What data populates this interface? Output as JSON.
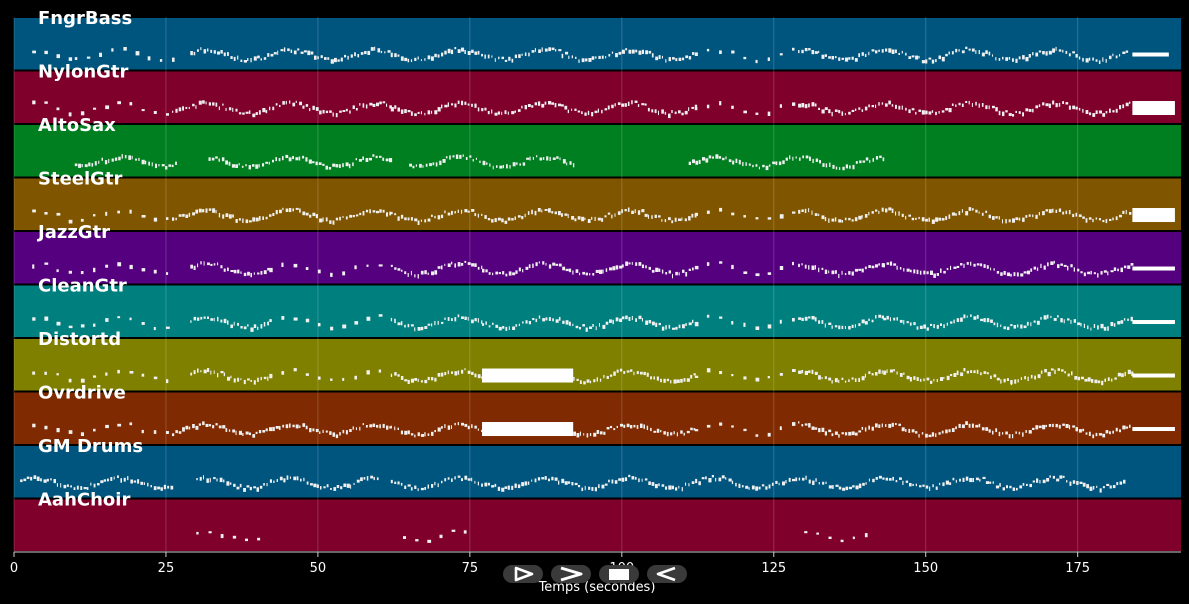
{
  "chart_data": {
    "type": "piano-roll",
    "title": "",
    "xlabel": "Temps (secondes)",
    "ylabel": "",
    "xlim": [
      0,
      192
    ],
    "xticks": [
      0,
      25,
      50,
      75,
      100,
      125,
      150,
      175
    ],
    "grid": true,
    "tracks": [
      {
        "name": "FngrBass",
        "color": "#00557f",
        "segments": [
          [
            3,
            10,
            "sparse"
          ],
          [
            10,
            27,
            "sparse"
          ],
          [
            29,
            62,
            "dense"
          ],
          [
            62,
            78,
            "dense"
          ],
          [
            78,
            100,
            "dense"
          ],
          [
            100,
            112,
            "dense"
          ],
          [
            112,
            129,
            "sparse"
          ],
          [
            129,
            183,
            "dense"
          ],
          [
            184,
            190,
            "sustain"
          ]
        ]
      },
      {
        "name": "NylonGtr",
        "color": "#7f002a",
        "segments": [
          [
            3,
            26,
            "sparse"
          ],
          [
            26,
            62,
            "dense"
          ],
          [
            62,
            90,
            "dense"
          ],
          [
            90,
            112,
            "dense"
          ],
          [
            112,
            129,
            "sparse"
          ],
          [
            129,
            184,
            "dense"
          ],
          [
            184,
            191,
            "block"
          ]
        ]
      },
      {
        "name": "AltoSax",
        "color": "#007f20",
        "segments": [
          [
            10,
            27,
            "dense"
          ],
          [
            32,
            62,
            "dense"
          ],
          [
            65,
            92,
            "dense"
          ],
          [
            111,
            143,
            "dense"
          ]
        ]
      },
      {
        "name": "SteelGtr",
        "color": "#7f5500",
        "segments": [
          [
            3,
            26,
            "sparse"
          ],
          [
            26,
            62,
            "dense"
          ],
          [
            62,
            90,
            "dense"
          ],
          [
            90,
            112,
            "dense"
          ],
          [
            112,
            129,
            "sparse"
          ],
          [
            129,
            184,
            "dense"
          ],
          [
            184,
            191,
            "block"
          ]
        ]
      },
      {
        "name": "JazzGtr",
        "color": "#55007f",
        "segments": [
          [
            3,
            26,
            "sparse"
          ],
          [
            29,
            42,
            "dense"
          ],
          [
            42,
            62,
            "sparse"
          ],
          [
            62,
            77,
            "dense"
          ],
          [
            77,
            100,
            "dense"
          ],
          [
            100,
            112,
            "dense"
          ],
          [
            112,
            129,
            "sparse"
          ],
          [
            129,
            143,
            "dense"
          ],
          [
            143,
            184,
            "dense"
          ],
          [
            184,
            191,
            "sustain"
          ]
        ]
      },
      {
        "name": "CleanGtr",
        "color": "#007f7f",
        "segments": [
          [
            3,
            26,
            "sparse"
          ],
          [
            29,
            42,
            "dense"
          ],
          [
            42,
            62,
            "sparse"
          ],
          [
            62,
            77,
            "dense"
          ],
          [
            77,
            100,
            "dense"
          ],
          [
            100,
            112,
            "dense"
          ],
          [
            112,
            129,
            "sparse"
          ],
          [
            129,
            143,
            "dense"
          ],
          [
            143,
            184,
            "dense"
          ],
          [
            184,
            191,
            "sustain"
          ]
        ]
      },
      {
        "name": "Distortd",
        "color": "#7f7f00",
        "segments": [
          [
            3,
            26,
            "sparse"
          ],
          [
            29,
            42,
            "dense"
          ],
          [
            42,
            62,
            "sparse"
          ],
          [
            62,
            77,
            "dense"
          ],
          [
            77,
            92,
            "block"
          ],
          [
            92,
            112,
            "dense"
          ],
          [
            112,
            129,
            "sparse"
          ],
          [
            129,
            143,
            "dense"
          ],
          [
            143,
            164,
            "dense"
          ],
          [
            164,
            184,
            "dense"
          ],
          [
            184,
            191,
            "sustain"
          ]
        ]
      },
      {
        "name": "Ovrdrive",
        "color": "#7f2a00",
        "segments": [
          [
            3,
            26,
            "sparse"
          ],
          [
            26,
            62,
            "dense"
          ],
          [
            62,
            77,
            "dense"
          ],
          [
            77,
            92,
            "block"
          ],
          [
            92,
            112,
            "dense"
          ],
          [
            112,
            129,
            "sparse"
          ],
          [
            129,
            184,
            "dense"
          ],
          [
            184,
            191,
            "sustain"
          ]
        ]
      },
      {
        "name": "GM Drums",
        "color": "#00557f",
        "segments": [
          [
            1,
            26,
            "dense"
          ],
          [
            30,
            60,
            "dense"
          ],
          [
            62,
            183,
            "dense"
          ]
        ]
      },
      {
        "name": "AahChoir",
        "color": "#7f002a",
        "segments": [
          [
            30,
            42,
            "sparse"
          ],
          [
            64,
            76,
            "sparse"
          ],
          [
            130,
            142,
            "sparse"
          ]
        ]
      }
    ]
  },
  "playback": {
    "controls": [
      {
        "name": "play-button",
        "icon": "play-icon"
      },
      {
        "name": "fast-forward-button",
        "icon": "fast-forward-icon"
      },
      {
        "name": "stop-button",
        "icon": "stop-icon"
      },
      {
        "name": "rewind-button",
        "icon": "rewind-icon"
      }
    ]
  }
}
